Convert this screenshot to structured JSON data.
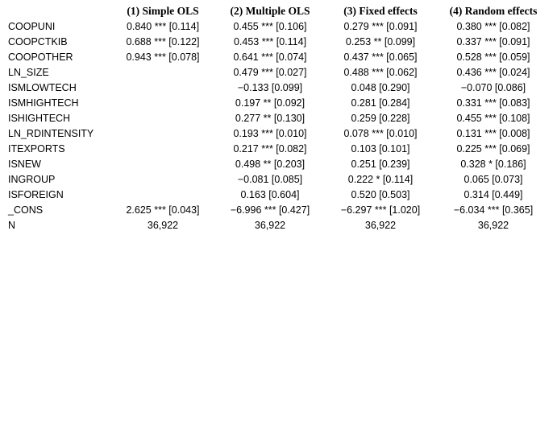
{
  "table": {
    "header": [
      "(1) Simple OLS",
      "(2) Multiple OLS",
      "(3) Fixed effects",
      "(4) Random effects"
    ],
    "rows": [
      {
        "label": "COOPUNI",
        "cells": [
          "0.840 *** [0.114]",
          "0.455 *** [0.106]",
          "0.279 *** [0.091]",
          "0.380 *** [0.082]"
        ]
      },
      {
        "label": "COOPCTKIB",
        "cells": [
          "0.688 *** [0.122]",
          "0.453 *** [0.114]",
          "0.253 ** [0.099]",
          "0.337 *** [0.091]"
        ]
      },
      {
        "label": "COOPOTHER",
        "cells": [
          "0.943 *** [0.078]",
          "0.641 *** [0.074]",
          "0.437 *** [0.065]",
          "0.528 *** [0.059]"
        ]
      },
      {
        "label": "LN_SIZE",
        "cells": [
          null,
          "0.479 *** [0.027]",
          "0.488 *** [0.062]",
          "0.436 *** [0.024]"
        ]
      },
      {
        "label": "ISMLOWTECH",
        "cells": [
          null,
          "−0.133 [0.099]",
          "0.048 [0.290]",
          "−0.070 [0.086]"
        ]
      },
      {
        "label": "ISMHIGHTECH",
        "cells": [
          null,
          "0.197 ** [0.092]",
          "0.281 [0.284]",
          "0.331 *** [0.083]"
        ]
      },
      {
        "label": "ISHIGHTECH",
        "cells": [
          null,
          "0.277 ** [0.130]",
          "0.259 [0.228]",
          "0.455 *** [0.108]"
        ]
      },
      {
        "label": "LN_RDINTENSITY",
        "cells": [
          null,
          "0.193 *** [0.010]",
          "0.078 *** [0.010]",
          "0.131 *** [0.008]"
        ]
      },
      {
        "label": "ITEXPORTS",
        "cells": [
          null,
          "0.217 *** [0.082]",
          "0.103 [0.101]",
          "0.225 *** [0.069]"
        ]
      },
      {
        "label": "ISNEW",
        "cells": [
          null,
          "0.498 ** [0.203]",
          "0.251 [0.239]",
          "0.328 * [0.186]"
        ]
      },
      {
        "label": "INGROUP",
        "cells": [
          null,
          "−0.081 [0.085]",
          "0.222 * [0.114]",
          "0.065 [0.073]"
        ]
      },
      {
        "label": "ISFOREIGN",
        "cells": [
          null,
          "0.163 [0.604]",
          "0.520 [0.503]",
          "0.314 [0.449]"
        ]
      },
      {
        "label": "_CONS",
        "cells": [
          "2.625 *** [0.043]",
          "−6.996 *** [0.427]",
          "−6.297 *** [1.020]",
          "−6.034 *** [0.365]"
        ]
      },
      {
        "label": "N",
        "cells": [
          "36,922",
          "36,922",
          "36,922",
          "36,922"
        ]
      }
    ]
  }
}
